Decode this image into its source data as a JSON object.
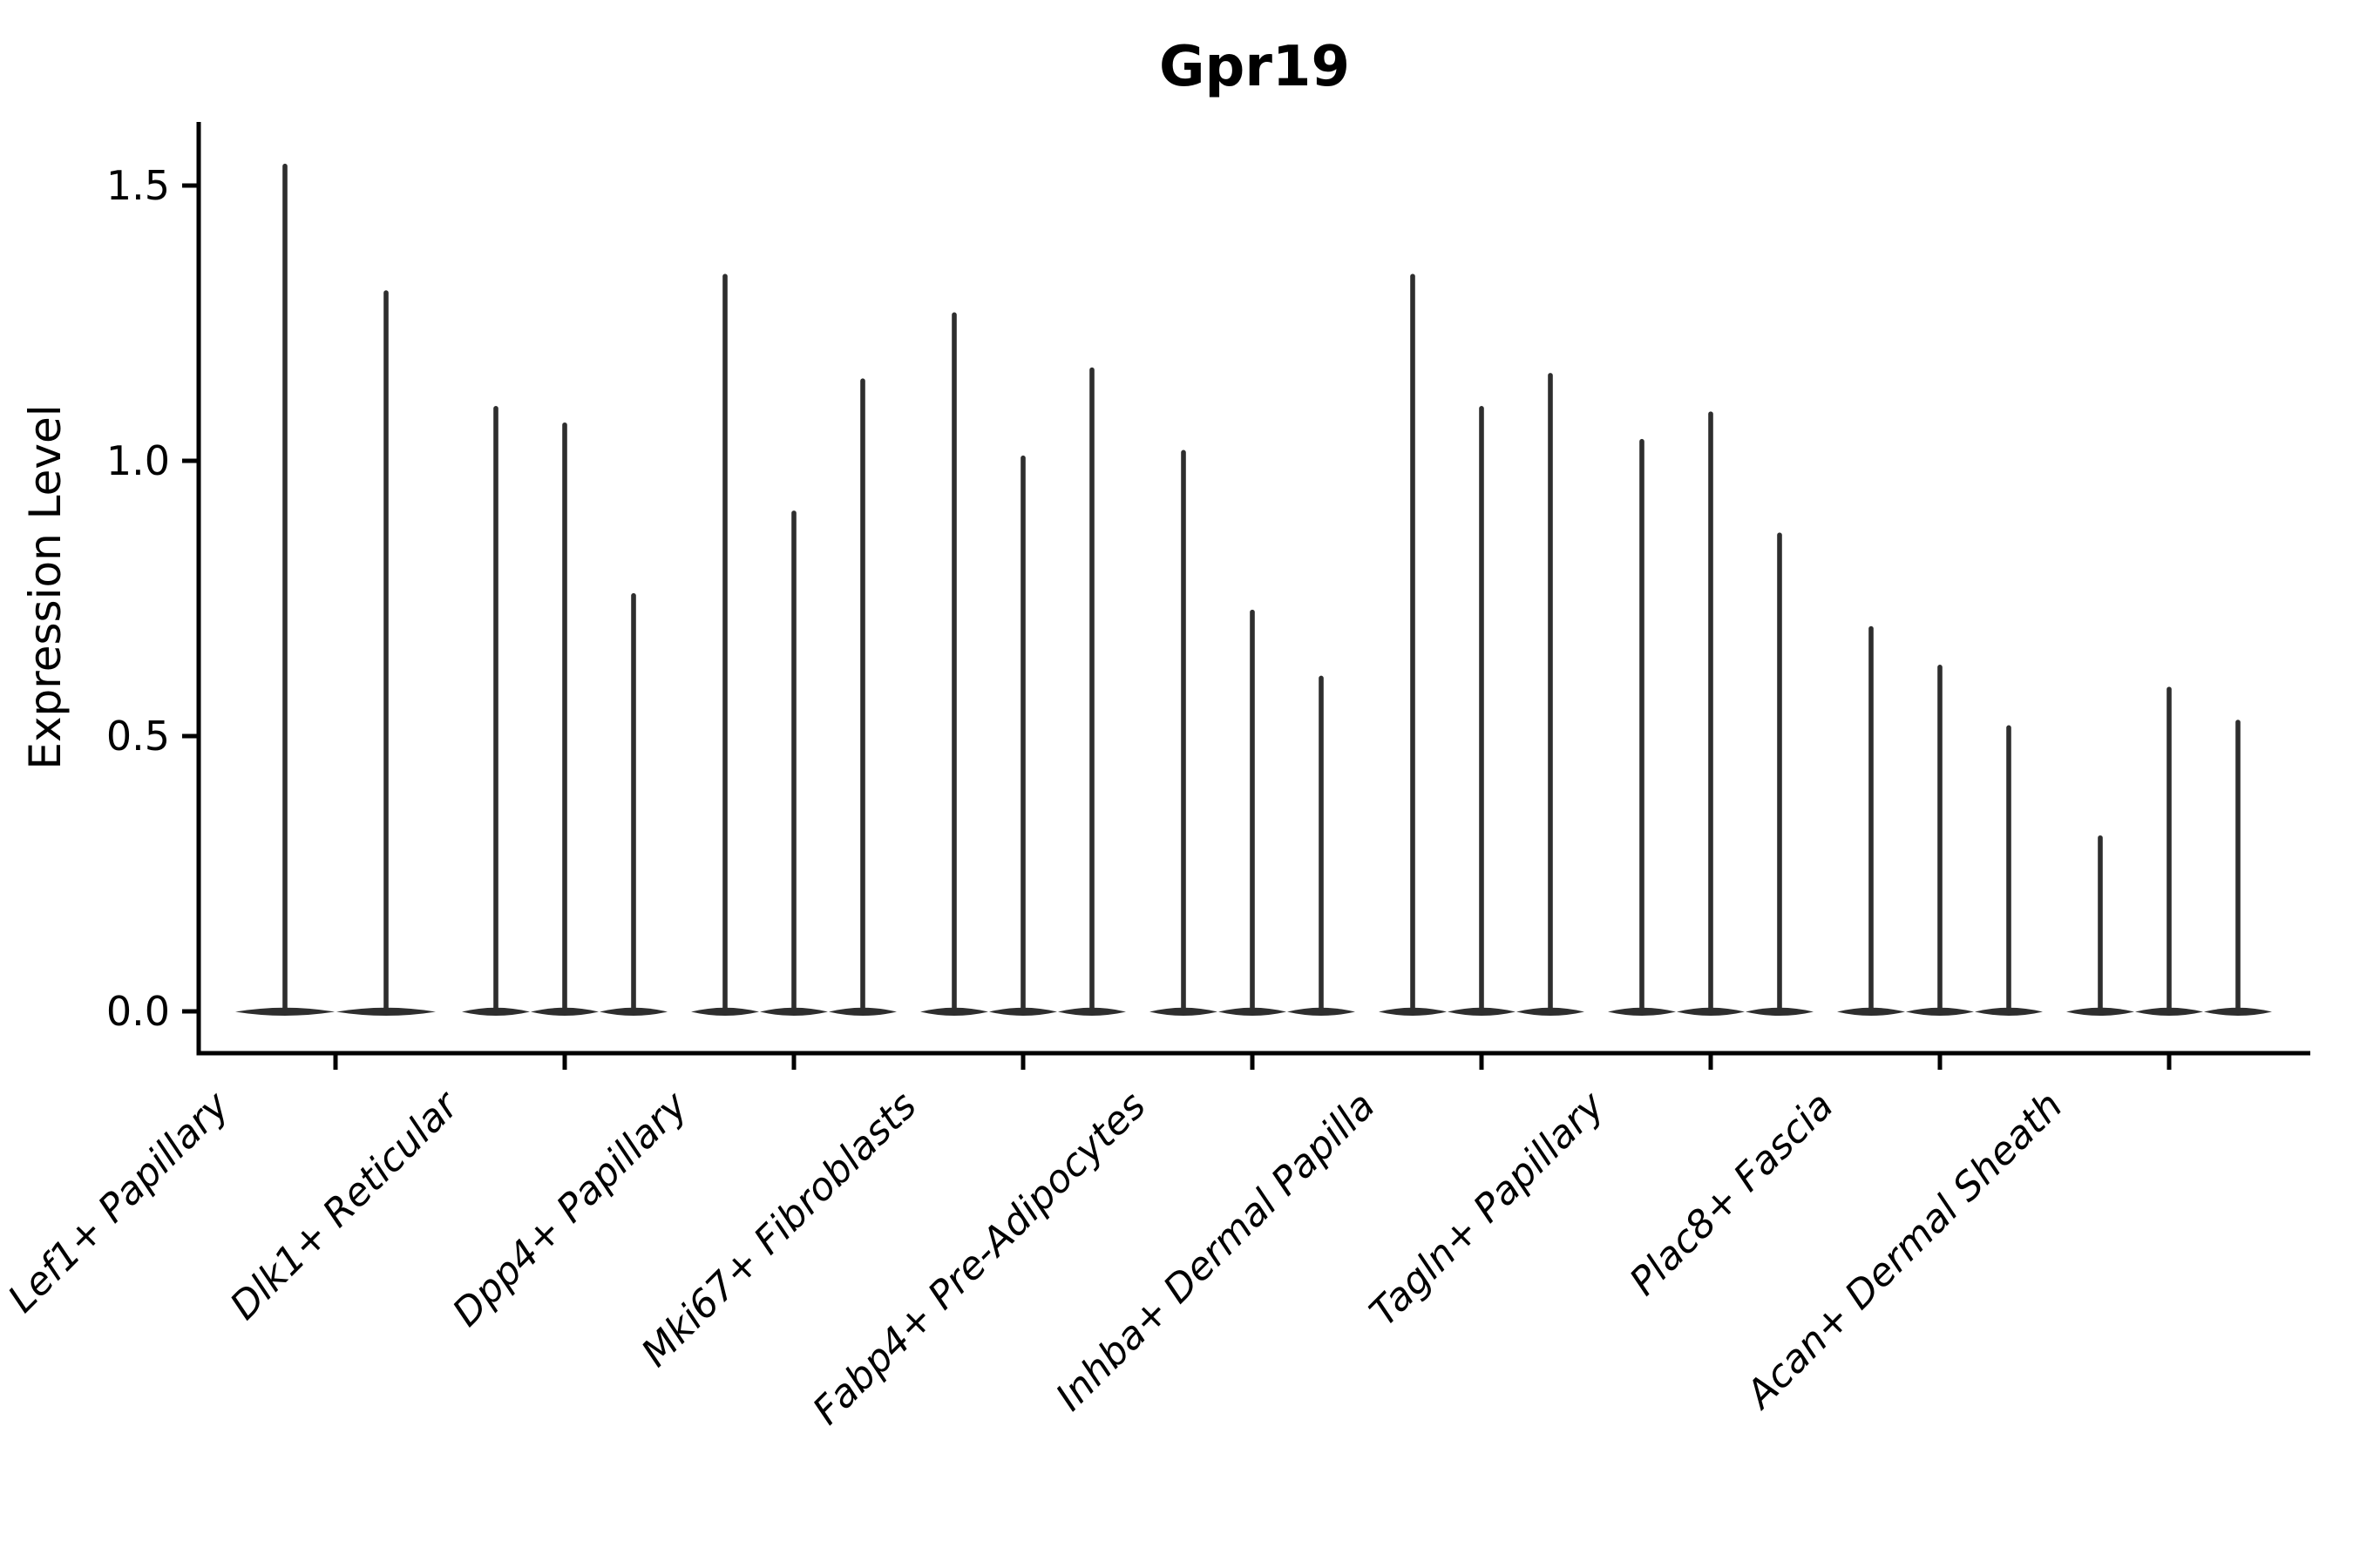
{
  "title": "Gpr19",
  "ylabel": "Expression Level",
  "colors": {
    "violin": "#2e2e2e",
    "axis": "#000000",
    "text": "#000000",
    "background": "#ffffff"
  },
  "chart_data": {
    "type": "violin",
    "title": "Gpr19",
    "xlabel": "",
    "ylabel": "Expression Level",
    "grid": false,
    "legend": "none",
    "ylim": [
      -0.08,
      1.62
    ],
    "yticks": [
      0.0,
      0.5,
      1.0,
      1.5
    ],
    "ytick_labels": [
      "0.0",
      "0.5",
      "1.0",
      "1.5"
    ],
    "categories": [
      "Lef1+ Papillary",
      "Dlk1+ Reticular",
      "Dpp4+ Papillary",
      "Mki67+ Fibroblasts",
      "Fabp4+ Pre-Adipocytes",
      "Inhba+ Dermal Papilla",
      "Tagln+ Papillary",
      "Plac8+ Fascia",
      "Acan+ Dermal Sheath"
    ],
    "violins_per_category": [
      2,
      3,
      3,
      3,
      3,
      3,
      3,
      3,
      3
    ],
    "max_expression_per_violin": [
      [
        1.54,
        1.31
      ],
      [
        1.1,
        1.07,
        0.76
      ],
      [
        1.34,
        0.91,
        1.15
      ],
      [
        1.27,
        1.01,
        1.17
      ],
      [
        1.02,
        0.73,
        0.61
      ],
      [
        1.34,
        1.1,
        1.16
      ],
      [
        1.04,
        1.09,
        0.87
      ],
      [
        0.7,
        0.63,
        0.52
      ],
      [
        0.32,
        0.59,
        0.53
      ]
    ],
    "violin_shape_note": "each violin is a wide flat lens at expression 0 with a very thin spike rising to its max expression value"
  }
}
